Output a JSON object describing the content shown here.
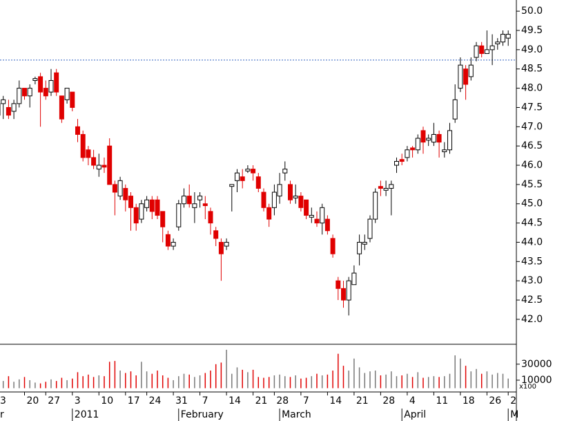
{
  "chart_data": {
    "type": "candlestick",
    "categories": [
      "3",
      null,
      null,
      null,
      null,
      "20",
      null,
      null,
      null,
      "27",
      null,
      null,
      null,
      null,
      "3",
      null,
      null,
      null,
      null,
      "10",
      null,
      null,
      null,
      null,
      "17",
      null,
      null,
      null,
      "24",
      null,
      null,
      null,
      null,
      "31",
      null,
      null,
      null,
      null,
      "7",
      null,
      null,
      null,
      null,
      "14",
      null,
      null,
      null,
      null,
      "21",
      null,
      null,
      null,
      "28",
      null,
      null,
      null,
      null,
      "7",
      null,
      null,
      null,
      null,
      "14",
      null,
      null,
      null,
      null,
      "21",
      null,
      null,
      null,
      null,
      "28",
      null,
      null,
      null,
      null,
      "4",
      null,
      null,
      null,
      null,
      "11",
      null,
      null,
      null,
      null,
      "18",
      null,
      null,
      null,
      null,
      "26",
      null,
      null,
      null,
      "2"
    ],
    "months": [
      "r",
      null,
      null,
      null,
      null,
      null,
      null,
      null,
      null,
      null,
      null,
      null,
      null,
      null,
      "2011",
      null,
      null,
      null,
      null,
      null,
      null,
      null,
      null,
      null,
      null,
      null,
      null,
      null,
      null,
      null,
      null,
      null,
      null,
      null,
      "February",
      null,
      null,
      null,
      null,
      null,
      null,
      null,
      null,
      null,
      null,
      null,
      null,
      null,
      null,
      null,
      null,
      null,
      null,
      "March",
      null,
      null,
      null,
      null,
      null,
      null,
      null,
      null,
      null,
      null,
      null,
      null,
      null,
      null,
      null,
      null,
      null,
      null,
      null,
      null,
      null,
      null,
      "April",
      null,
      null,
      null,
      null,
      null,
      null,
      null,
      null,
      null,
      null,
      null,
      null,
      null,
      null,
      null,
      null,
      null,
      null,
      null,
      "M"
    ],
    "open": [
      47.3,
      47.6,
      47.5,
      47.4,
      47.6,
      48.0,
      47.8,
      48.2,
      48.3,
      48.0,
      47.9,
      48.4,
      47.8,
      47.7,
      47.9,
      47.0,
      46.8,
      46.4,
      46.2,
      45.9,
      46.0,
      46.5,
      45.5,
      45.2,
      45.4,
      45.2,
      44.9,
      44.6,
      44.9,
      45.1,
      45.1,
      44.8,
      44.2,
      43.9,
      44.4,
      45.0,
      45.2,
      44.9,
      45.1,
      45.0,
      44.8,
      44.3,
      44.0,
      43.9,
      45.45,
      45.6,
      45.7,
      45.85,
      45.9,
      45.7,
      45.3,
      44.9,
      44.9,
      45.2,
      45.8,
      45.5,
      45.15,
      45.2,
      45.1,
      44.65,
      44.6,
      44.5,
      44.6,
      44.1,
      43.0,
      42.8,
      42.5,
      42.9,
      43.7,
      43.95,
      44.1,
      44.6,
      45.45,
      45.35,
      45.4,
      46.0,
      46.15,
      46.2,
      46.45,
      46.4,
      46.9,
      46.65,
      46.6,
      46.8,
      46.35,
      46.4,
      47.2,
      48.0,
      48.5,
      48.3,
      48.8,
      49.1,
      48.9,
      49.0,
      49.15,
      49.2,
      49.3
    ],
    "high": [
      47.7,
      47.8,
      47.7,
      47.7,
      48.2,
      48.0,
      48.1,
      48.3,
      48.4,
      48.2,
      48.5,
      48.5,
      47.8,
      48.0,
      47.9,
      47.2,
      46.9,
      46.5,
      46.4,
      46.3,
      46.2,
      46.7,
      45.6,
      45.7,
      45.5,
      45.3,
      45.0,
      45.1,
      45.2,
      45.2,
      45.2,
      44.8,
      44.3,
      44.1,
      45.1,
      45.4,
      45.5,
      45.3,
      45.3,
      45.2,
      44.9,
      44.4,
      44.1,
      44.1,
      45.5,
      45.9,
      45.9,
      46.0,
      46.0,
      45.8,
      45.4,
      45.0,
      45.5,
      45.8,
      46.1,
      45.6,
      45.5,
      45.3,
      45.1,
      44.9,
      44.8,
      45.0,
      44.7,
      44.2,
      43.1,
      43.0,
      43.1,
      43.4,
      44.2,
      44.2,
      44.7,
      45.4,
      45.6,
      45.6,
      45.6,
      46.2,
      46.3,
      46.5,
      46.5,
      46.8,
      47.0,
      46.8,
      47.1,
      46.9,
      46.6,
      47.1,
      48.1,
      48.8,
      48.6,
      48.8,
      49.2,
      49.2,
      49.5,
      49.4,
      49.3,
      49.5,
      49.5
    ],
    "low": [
      47.2,
      47.2,
      47.2,
      47.2,
      47.5,
      47.7,
      47.5,
      48.1,
      47.0,
      47.7,
      47.8,
      47.8,
      47.1,
      47.6,
      47.4,
      46.6,
      46.1,
      46.0,
      45.9,
      45.7,
      45.8,
      45.5,
      44.7,
      45.1,
      44.8,
      44.3,
      44.3,
      44.5,
      44.8,
      44.6,
      44.6,
      44.0,
      43.8,
      43.8,
      44.3,
      44.9,
      44.9,
      44.5,
      44.9,
      44.6,
      44.2,
      43.9,
      43.0,
      43.8,
      44.8,
      45.3,
      45.4,
      45.8,
      45.6,
      45.3,
      44.8,
      44.4,
      44.7,
      45.0,
      45.6,
      45.0,
      45.0,
      44.8,
      44.6,
      44.5,
      44.4,
      44.2,
      44.2,
      43.6,
      42.5,
      42.3,
      42.1,
      42.9,
      43.4,
      43.8,
      44.0,
      44.5,
      45.2,
      45.2,
      44.7,
      45.8,
      46.0,
      46.1,
      46.2,
      46.3,
      46.3,
      46.5,
      46.5,
      46.2,
      46.2,
      46.3,
      47.1,
      47.9,
      47.7,
      48.2,
      48.7,
      48.8,
      48.9,
      48.6,
      49.0,
      49.1,
      49.1
    ],
    "close": [
      47.6,
      47.7,
      47.3,
      47.6,
      48.0,
      47.8,
      48.0,
      48.25,
      47.9,
      47.8,
      48.2,
      47.9,
      47.2,
      48.0,
      47.5,
      46.8,
      46.2,
      46.2,
      46.0,
      46.0,
      45.95,
      45.5,
      45.3,
      45.6,
      45.1,
      44.9,
      44.5,
      45.0,
      45.1,
      44.8,
      44.7,
      44.4,
      43.9,
      44.0,
      45.0,
      45.2,
      45.0,
      45.0,
      45.2,
      44.95,
      44.5,
      44.1,
      43.7,
      44.0,
      45.5,
      45.8,
      45.6,
      45.9,
      45.8,
      45.4,
      44.9,
      44.6,
      45.3,
      45.5,
      45.9,
      45.1,
      45.2,
      44.9,
      44.7,
      44.7,
      44.5,
      44.9,
      44.3,
      43.7,
      42.8,
      42.5,
      43.0,
      43.2,
      44.0,
      44.0,
      44.6,
      45.3,
      45.4,
      45.4,
      45.5,
      46.1,
      46.1,
      46.4,
      46.4,
      46.7,
      46.6,
      46.7,
      46.8,
      46.6,
      46.4,
      46.9,
      47.7,
      48.6,
      48.1,
      48.6,
      49.1,
      48.9,
      49.0,
      49.1,
      49.2,
      49.4,
      49.4
    ],
    "volume": [
      12000,
      9000,
      15000,
      8000,
      11000,
      14000,
      10000,
      7000,
      6000,
      8000,
      11000,
      9000,
      13000,
      10000,
      12000,
      20000,
      15000,
      17000,
      14000,
      16000,
      15000,
      33000,
      34000,
      22000,
      19000,
      21000,
      16000,
      33000,
      21000,
      18000,
      22000,
      16000,
      13000,
      10000,
      15000,
      18000,
      17000,
      14000,
      16000,
      19000,
      22000,
      30000,
      32000,
      48000,
      18000,
      26000,
      23000,
      20000,
      23000,
      14000,
      13000,
      14000,
      16000,
      17000,
      15000,
      14000,
      16000,
      12000,
      13000,
      15000,
      18000,
      16000,
      17000,
      22000,
      43000,
      28000,
      22000,
      37000,
      26000,
      19000,
      21000,
      22000,
      16000,
      17000,
      21000,
      15000,
      16000,
      18000,
      14000,
      20000,
      13000,
      14000,
      15000,
      14000,
      15000,
      18000,
      41000,
      37000,
      28000,
      21000,
      24000,
      18000,
      21000,
      17000,
      19000,
      18000,
      12000
    ],
    "ylim": [
      41.37,
      50.29
    ],
    "yticks": [
      {
        "value": 42,
        "label": "42.0"
      },
      {
        "value": 42.5,
        "label": "42.5"
      },
      {
        "value": 43,
        "label": "43.0"
      },
      {
        "value": 43.5,
        "label": "43.5"
      },
      {
        "value": 44,
        "label": "44.0"
      },
      {
        "value": 44.5,
        "label": "44.5"
      },
      {
        "value": 45,
        "label": "45.0"
      },
      {
        "value": 45.5,
        "label": "45.5"
      },
      {
        "value": 46,
        "label": "46.0"
      },
      {
        "value": 46.5,
        "label": "46.5"
      },
      {
        "value": 47,
        "label": "47.0"
      },
      {
        "value": 47.5,
        "label": "47.5"
      },
      {
        "value": 48,
        "label": "48.0"
      },
      {
        "value": 48.5,
        "label": "48.5"
      },
      {
        "value": 49,
        "label": "49.0"
      },
      {
        "value": 49.5,
        "label": "49.5"
      },
      {
        "value": 50,
        "label": "50.0"
      }
    ],
    "volume_lim": [
      -3000,
      54000
    ],
    "volume_ticks": [
      30000,
      10000
    ],
    "volume_unit": "x100",
    "ref_line": 48.73,
    "up_color": "#ffffff",
    "down_color": "#e00000",
    "ref_color": "#3060c0"
  }
}
